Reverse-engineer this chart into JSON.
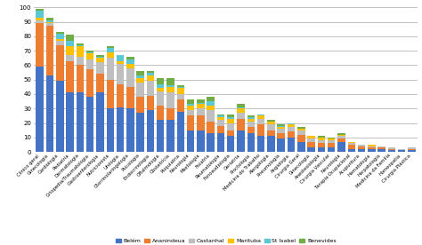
{
  "categories": [
    "Clínico geral",
    "Ginecologia",
    "Cardiologia",
    "Pediatria",
    "Dermatologia",
    "Ortopedia/Traumatologia",
    "Gastroenterologia",
    "Nutricionista",
    "Urologia",
    "Otorrinolaringologia",
    "Psicologia",
    "Endocrinologia",
    "Oftalmologia",
    "Obstetrícia",
    "Psiquiatria",
    "Neurologia",
    "Mastologia",
    "Fisiatria",
    "Reumatologia",
    "Fonoaudiologia",
    "Geriatria",
    "Proctologia",
    "Medicina do Trabalho",
    "Alergologia",
    "Pneumologia",
    "Angiologia",
    "Cirurgia Geral",
    "Ginecologia",
    "Anestesiologia",
    "Cirurgia Vascular",
    "Neurologia",
    "Terapia Ocupacional",
    "Acupuntura",
    "Hematologia",
    "Herpatologia",
    "Medicina da Família",
    "Homeopatia",
    "Cirurgia Plástica"
  ],
  "series": {
    "Belém": [
      59,
      53,
      49,
      41,
      41,
      38,
      41,
      30,
      31,
      30,
      27,
      29,
      22,
      22,
      28,
      15,
      15,
      13,
      13,
      11,
      15,
      13,
      11,
      11,
      9,
      10,
      7,
      3,
      3,
      3,
      7,
      2,
      2,
      2,
      2,
      1,
      1,
      1
    ],
    "Ananindeua": [
      30,
      34,
      25,
      22,
      19,
      19,
      13,
      20,
      16,
      15,
      11,
      10,
      10,
      8,
      8,
      10,
      10,
      8,
      5,
      4,
      8,
      4,
      8,
      4,
      4,
      4,
      5,
      4,
      3,
      3,
      2,
      3,
      2,
      1,
      1,
      1,
      0,
      1
    ],
    "Castanhal": [
      2,
      2,
      3,
      4,
      6,
      7,
      8,
      15,
      14,
      13,
      10,
      10,
      10,
      11,
      4,
      4,
      5,
      8,
      4,
      5,
      4,
      4,
      4,
      4,
      3,
      3,
      3,
      2,
      2,
      2,
      2,
      1,
      1,
      1,
      1,
      1,
      1,
      1
    ],
    "Marituba": [
      2,
      1,
      1,
      6,
      7,
      4,
      3,
      4,
      2,
      3,
      3,
      4,
      2,
      4,
      4,
      3,
      3,
      3,
      2,
      3,
      3,
      2,
      2,
      2,
      1,
      2,
      1,
      2,
      2,
      1,
      1,
      1,
      0,
      1,
      0,
      0,
      0,
      0
    ],
    "St Isabel": [
      5,
      1,
      4,
      4,
      1,
      1,
      1,
      3,
      4,
      3,
      2,
      2,
      3,
      1,
      1,
      1,
      1,
      3,
      1,
      1,
      1,
      1,
      1,
      0,
      1,
      1,
      0,
      0,
      0,
      0,
      0,
      0,
      0,
      0,
      0,
      0,
      0,
      0
    ],
    "Benevides": [
      1,
      2,
      1,
      4,
      1,
      1,
      1,
      1,
      0,
      2,
      3,
      1,
      4,
      5,
      1,
      3,
      2,
      3,
      1,
      2,
      2,
      1,
      0,
      1,
      1,
      0,
      1,
      0,
      1,
      1,
      1,
      0,
      0,
      0,
      0,
      0,
      0,
      0
    ]
  },
  "colors": {
    "Belém": "#4472C4",
    "Ananindeua": "#ED7D31",
    "Castanhal": "#BFBFBF",
    "Marituba": "#FFC000",
    "St Isabel": "#5BC8D4",
    "Benevides": "#70AD47"
  },
  "ylim": [
    0,
    100
  ],
  "yticks": [
    0,
    10,
    20,
    30,
    40,
    50,
    60,
    70,
    80,
    90,
    100
  ],
  "figsize": [
    4.74,
    2.76
  ],
  "dpi": 100
}
